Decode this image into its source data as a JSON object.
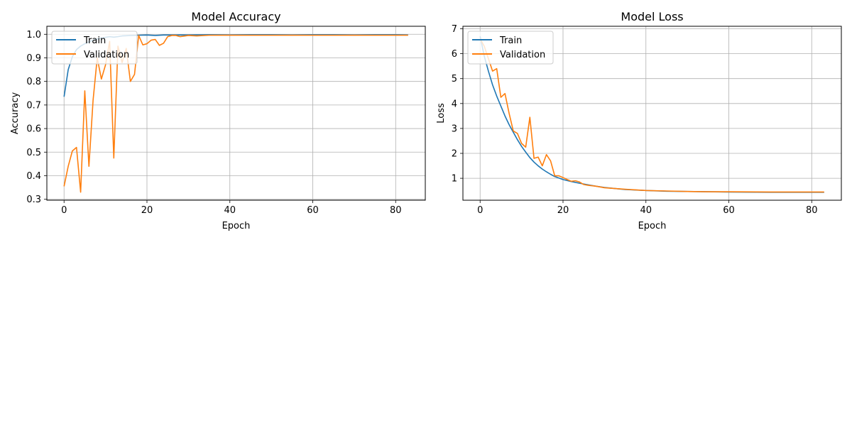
{
  "chart_data": [
    {
      "type": "line",
      "title": "Model Accuracy",
      "xlabel": "Epoch",
      "ylabel": "Accuracy",
      "xlim": [
        -4.15,
        87.15
      ],
      "ylim": [
        0.296,
        1.034
      ],
      "xticks": [
        0,
        20,
        40,
        60,
        80
      ],
      "yticks": [
        0.3,
        0.4,
        0.5,
        0.6,
        0.7,
        0.8,
        0.9,
        1.0
      ],
      "ytick_format": 1,
      "grid": true,
      "legend_position": "upper-left",
      "series": [
        {
          "name": "Train",
          "color": "#1f77b4",
          "points": [
            [
              0,
              0.735
            ],
            [
              1,
              0.85
            ],
            [
              2,
              0.905
            ],
            [
              3,
              0.935
            ],
            [
              4,
              0.95
            ],
            [
              5,
              0.96
            ],
            [
              6,
              0.968
            ],
            [
              7,
              0.975
            ],
            [
              8,
              0.98
            ],
            [
              9,
              0.984
            ],
            [
              10,
              0.987
            ],
            [
              11,
              0.99
            ],
            [
              12,
              0.988
            ],
            [
              13,
              0.99
            ],
            [
              14,
              0.993
            ],
            [
              15,
              0.994
            ],
            [
              16,
              0.995
            ],
            [
              18,
              0.996
            ],
            [
              20,
              0.997
            ],
            [
              22,
              0.995
            ],
            [
              24,
              0.997
            ],
            [
              30,
              0.997
            ],
            [
              35,
              0.998
            ],
            [
              40,
              0.997
            ],
            [
              45,
              0.998
            ],
            [
              50,
              0.998
            ],
            [
              55,
              0.997
            ],
            [
              60,
              0.998
            ],
            [
              65,
              0.998
            ],
            [
              70,
              0.997
            ],
            [
              75,
              0.998
            ],
            [
              80,
              0.998
            ],
            [
              83,
              0.997
            ]
          ]
        },
        {
          "name": "Validation",
          "color": "#ff7f0e",
          "points": [
            [
              0,
              0.355
            ],
            [
              1,
              0.44
            ],
            [
              2,
              0.505
            ],
            [
              3,
              0.52
            ],
            [
              4,
              0.33
            ],
            [
              5,
              0.76
            ],
            [
              6,
              0.44
            ],
            [
              7,
              0.72
            ],
            [
              8,
              0.9
            ],
            [
              9,
              0.81
            ],
            [
              10,
              0.87
            ],
            [
              11,
              0.97
            ],
            [
              12,
              0.475
            ],
            [
              13,
              0.95
            ],
            [
              14,
              0.88
            ],
            [
              15,
              0.94
            ],
            [
              16,
              0.8
            ],
            [
              17,
              0.83
            ],
            [
              18,
              0.995
            ],
            [
              19,
              0.955
            ],
            [
              20,
              0.96
            ],
            [
              21,
              0.975
            ],
            [
              22,
              0.978
            ],
            [
              23,
              0.953
            ],
            [
              24,
              0.962
            ],
            [
              25,
              0.99
            ],
            [
              26,
              0.995
            ],
            [
              27,
              0.995
            ],
            [
              28,
              0.99
            ],
            [
              30,
              0.995
            ],
            [
              32,
              0.993
            ],
            [
              35,
              0.996
            ],
            [
              40,
              0.996
            ],
            [
              45,
              0.996
            ],
            [
              50,
              0.996
            ],
            [
              55,
              0.996
            ],
            [
              60,
              0.996
            ],
            [
              65,
              0.996
            ],
            [
              70,
              0.996
            ],
            [
              75,
              0.996
            ],
            [
              80,
              0.996
            ],
            [
              83,
              0.996
            ]
          ]
        }
      ]
    },
    {
      "type": "line",
      "title": "Model Loss",
      "xlabel": "Epoch",
      "ylabel": "Loss",
      "xlim": [
        -4.15,
        87.15
      ],
      "ylim": [
        0.12,
        7.1
      ],
      "xticks": [
        0,
        20,
        40,
        60,
        80
      ],
      "yticks": [
        1,
        2,
        3,
        4,
        5,
        6,
        7
      ],
      "ytick_format": 0,
      "grid": true,
      "legend_position": "upper-left",
      "series": [
        {
          "name": "Train",
          "color": "#1f77b4",
          "points": [
            [
              0,
              6.7
            ],
            [
              1,
              5.9
            ],
            [
              2,
              5.3
            ],
            [
              3,
              4.75
            ],
            [
              4,
              4.3
            ],
            [
              5,
              3.9
            ],
            [
              6,
              3.5
            ],
            [
              7,
              3.15
            ],
            [
              8,
              2.85
            ],
            [
              9,
              2.55
            ],
            [
              10,
              2.28
            ],
            [
              11,
              2.05
            ],
            [
              12,
              1.83
            ],
            [
              13,
              1.65
            ],
            [
              14,
              1.5
            ],
            [
              15,
              1.37
            ],
            [
              16,
              1.26
            ],
            [
              17,
              1.16
            ],
            [
              18,
              1.07
            ],
            [
              20,
              0.95
            ],
            [
              22,
              0.87
            ],
            [
              24,
              0.8
            ],
            [
              26,
              0.74
            ],
            [
              28,
              0.68
            ],
            [
              30,
              0.63
            ],
            [
              35,
              0.55
            ],
            [
              40,
              0.51
            ],
            [
              45,
              0.48
            ],
            [
              50,
              0.47
            ],
            [
              55,
              0.46
            ],
            [
              60,
              0.45
            ],
            [
              70,
              0.44
            ],
            [
              80,
              0.44
            ],
            [
              83,
              0.44
            ]
          ]
        },
        {
          "name": "Validation",
          "color": "#ff7f0e",
          "points": [
            [
              0,
              6.6
            ],
            [
              1,
              6.3
            ],
            [
              2,
              5.8
            ],
            [
              3,
              5.3
            ],
            [
              4,
              5.4
            ],
            [
              5,
              4.25
            ],
            [
              6,
              4.4
            ],
            [
              7,
              3.6
            ],
            [
              8,
              2.9
            ],
            [
              9,
              2.8
            ],
            [
              10,
              2.4
            ],
            [
              11,
              2.25
            ],
            [
              12,
              3.45
            ],
            [
              13,
              1.8
            ],
            [
              14,
              1.85
            ],
            [
              15,
              1.5
            ],
            [
              16,
              1.95
            ],
            [
              17,
              1.7
            ],
            [
              18,
              1.1
            ],
            [
              19,
              1.1
            ],
            [
              20,
              1.03
            ],
            [
              21,
              0.95
            ],
            [
              22,
              0.88
            ],
            [
              23,
              0.9
            ],
            [
              24,
              0.85
            ],
            [
              25,
              0.75
            ],
            [
              26,
              0.72
            ],
            [
              28,
              0.68
            ],
            [
              30,
              0.62
            ],
            [
              35,
              0.56
            ],
            [
              40,
              0.51
            ],
            [
              45,
              0.49
            ],
            [
              50,
              0.47
            ],
            [
              55,
              0.46
            ],
            [
              60,
              0.46
            ],
            [
              70,
              0.45
            ],
            [
              80,
              0.45
            ],
            [
              83,
              0.45
            ]
          ]
        }
      ]
    }
  ]
}
